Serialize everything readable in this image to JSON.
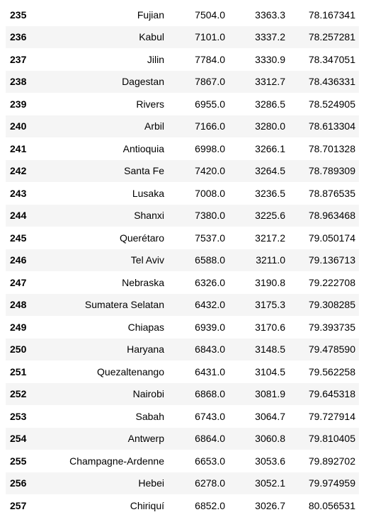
{
  "table": {
    "rows": [
      {
        "index": "235",
        "name": "Fujian",
        "col1": "7504.0",
        "col2": "3363.3",
        "col3": "78.167341"
      },
      {
        "index": "236",
        "name": "Kabul",
        "col1": "7101.0",
        "col2": "3337.2",
        "col3": "78.257281"
      },
      {
        "index": "237",
        "name": "Jilin",
        "col1": "7784.0",
        "col2": "3330.9",
        "col3": "78.347051"
      },
      {
        "index": "238",
        "name": "Dagestan",
        "col1": "7867.0",
        "col2": "3312.7",
        "col3": "78.436331"
      },
      {
        "index": "239",
        "name": "Rivers",
        "col1": "6955.0",
        "col2": "3286.5",
        "col3": "78.524905"
      },
      {
        "index": "240",
        "name": "Arbil",
        "col1": "7166.0",
        "col2": "3280.0",
        "col3": "78.613304"
      },
      {
        "index": "241",
        "name": "Antioquia",
        "col1": "6998.0",
        "col2": "3266.1",
        "col3": "78.701328"
      },
      {
        "index": "242",
        "name": "Santa Fe",
        "col1": "7420.0",
        "col2": "3264.5",
        "col3": "78.789309"
      },
      {
        "index": "243",
        "name": "Lusaka",
        "col1": "7008.0",
        "col2": "3236.5",
        "col3": "78.876535"
      },
      {
        "index": "244",
        "name": "Shanxi",
        "col1": "7380.0",
        "col2": "3225.6",
        "col3": "78.963468"
      },
      {
        "index": "245",
        "name": "Querétaro",
        "col1": "7537.0",
        "col2": "3217.2",
        "col3": "79.050174"
      },
      {
        "index": "246",
        "name": "Tel Aviv",
        "col1": "6588.0",
        "col2": "3211.0",
        "col3": "79.136713"
      },
      {
        "index": "247",
        "name": "Nebraska",
        "col1": "6326.0",
        "col2": "3190.8",
        "col3": "79.222708"
      },
      {
        "index": "248",
        "name": "Sumatera Selatan",
        "col1": "6432.0",
        "col2": "3175.3",
        "col3": "79.308285"
      },
      {
        "index": "249",
        "name": "Chiapas",
        "col1": "6939.0",
        "col2": "3170.6",
        "col3": "79.393735"
      },
      {
        "index": "250",
        "name": "Haryana",
        "col1": "6843.0",
        "col2": "3148.5",
        "col3": "79.478590"
      },
      {
        "index": "251",
        "name": "Quezaltenango",
        "col1": "6431.0",
        "col2": "3104.5",
        "col3": "79.562258"
      },
      {
        "index": "252",
        "name": "Nairobi",
        "col1": "6868.0",
        "col2": "3081.9",
        "col3": "79.645318"
      },
      {
        "index": "253",
        "name": "Sabah",
        "col1": "6743.0",
        "col2": "3064.7",
        "col3": "79.727914"
      },
      {
        "index": "254",
        "name": "Antwerp",
        "col1": "6864.0",
        "col2": "3060.8",
        "col3": "79.810405"
      },
      {
        "index": "255",
        "name": "Champagne-Ardenne",
        "col1": "6653.0",
        "col2": "3053.6",
        "col3": "79.892702"
      },
      {
        "index": "256",
        "name": "Hebei",
        "col1": "6278.0",
        "col2": "3052.1",
        "col3": "79.974959"
      },
      {
        "index": "257",
        "name": "Chiriquí",
        "col1": "6852.0",
        "col2": "3026.7",
        "col3": "80.056531"
      }
    ]
  },
  "colors": {
    "stripe": "#f5f5f5",
    "background": "#ffffff",
    "text": "#000000"
  }
}
